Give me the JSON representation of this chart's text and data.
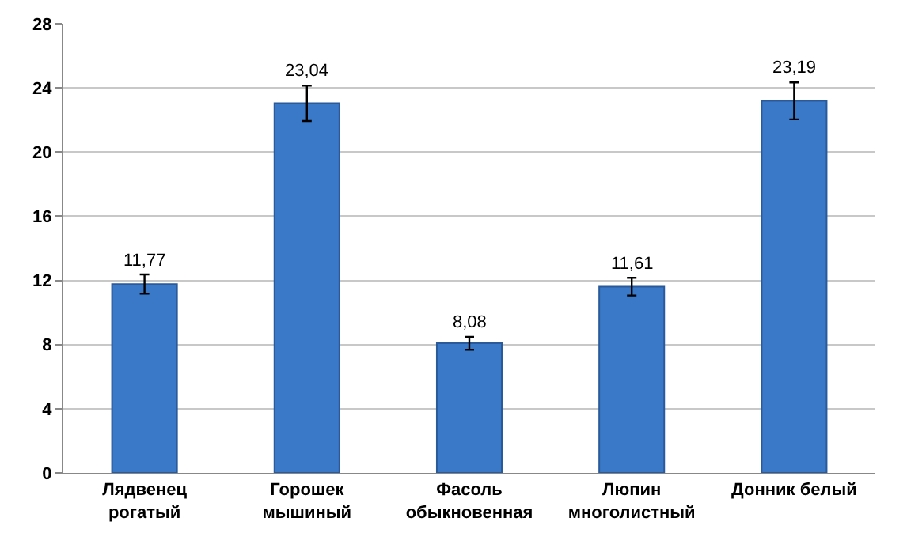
{
  "chart_data": {
    "type": "bar",
    "categories": [
      "Лядвенец рогатый",
      "Горошек мышиный",
      "Фасоль обыкновенная",
      "Люпин многолистный",
      "Донник белый"
    ],
    "values": [
      11.77,
      23.04,
      8.08,
      11.61,
      23.19
    ],
    "value_labels": [
      "11,77",
      "23,04",
      "8,08",
      "11,61",
      "23,19"
    ],
    "errors": [
      0.6,
      1.1,
      0.4,
      0.55,
      1.15
    ],
    "color": "#3a78c8",
    "ylim": [
      0,
      28
    ],
    "yticks": [
      0,
      4,
      8,
      12,
      16,
      20,
      24,
      28
    ],
    "grid": "y"
  }
}
